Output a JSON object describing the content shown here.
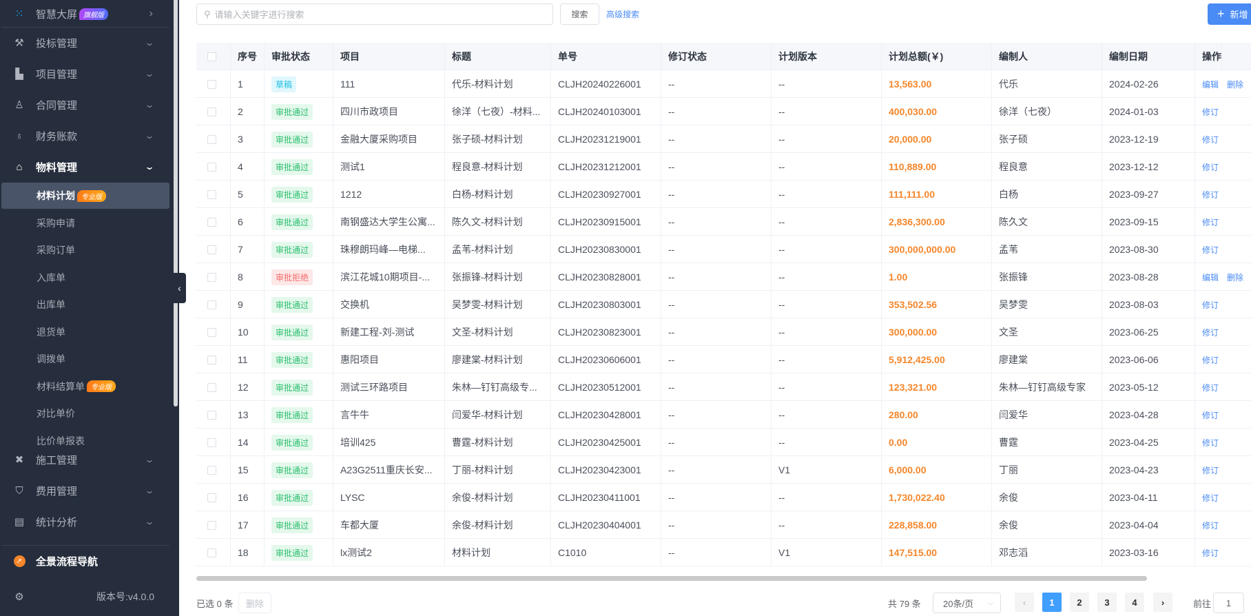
{
  "sidebar": {
    "top": {
      "label": "智慧大屏",
      "badge": "旗舰版",
      "icon": "dots-grid-icon"
    },
    "menus": [
      {
        "label": "投标管理",
        "icon": "gavel-icon"
      },
      {
        "label": "项目管理",
        "icon": "building-icon"
      },
      {
        "label": "合同管理",
        "icon": "seal-icon"
      },
      {
        "label": "财务账款",
        "icon": "money-bag-icon"
      },
      {
        "label": "物料管理",
        "icon": "warehouse-icon"
      }
    ],
    "submenu": [
      {
        "label": "材料计划",
        "badge": "专业版",
        "active": true
      },
      {
        "label": "采购申请"
      },
      {
        "label": "采购订单"
      },
      {
        "label": "入库单"
      },
      {
        "label": "出库单"
      },
      {
        "label": "退货单"
      },
      {
        "label": "调拨单"
      },
      {
        "label": "材料结算单",
        "badge": "专业版"
      },
      {
        "label": "对比单价"
      },
      {
        "label": "比价单报表"
      }
    ],
    "menus2": [
      {
        "label": "施工管理",
        "icon": "tools-icon"
      },
      {
        "label": "费用管理",
        "icon": "shield-yen-icon"
      },
      {
        "label": "统计分析",
        "icon": "chart-box-icon"
      }
    ],
    "nav": {
      "label": "全景流程导航",
      "icon": "compass-icon"
    },
    "version": "版本号:v4.0.0"
  },
  "toolbar": {
    "search_placeholder": "请输入关键字进行搜索",
    "search_label": "搜索",
    "advanced_label": "高级搜索",
    "new_label": "新增"
  },
  "table": {
    "columns": [
      "序号",
      "审批状态",
      "项目",
      "标题",
      "单号",
      "修订状态",
      "计划版本",
      "计划总额(￥)",
      "编制人",
      "编制日期",
      "操作"
    ],
    "rows": [
      {
        "no": "1",
        "status": "草稿",
        "kind": "draft",
        "project": "111",
        "title": "代乐-材料计划",
        "code": "CLJH20240226001",
        "rev": "--",
        "ver": "--",
        "amount": "13,563.00",
        "author": "代乐",
        "date": "2024-02-26",
        "actions": [
          "编辑",
          "删除"
        ]
      },
      {
        "no": "2",
        "status": "审批通过",
        "kind": "pass",
        "project": "四川市政项目",
        "title": "徐洋（七夜）-材料...",
        "code": "CLJH20240103001",
        "rev": "--",
        "ver": "--",
        "amount": "400,030.00",
        "author": "徐洋（七夜）",
        "date": "2024-01-03",
        "actions": [
          "修订"
        ]
      },
      {
        "no": "3",
        "status": "审批通过",
        "kind": "pass",
        "project": "金融大厦采购项目",
        "title": "张子硕-材料计划",
        "code": "CLJH20231219001",
        "rev": "--",
        "ver": "--",
        "amount": "20,000.00",
        "author": "张子硕",
        "date": "2023-12-19",
        "actions": [
          "修订"
        ]
      },
      {
        "no": "4",
        "status": "审批通过",
        "kind": "pass",
        "project": "测试1",
        "title": "程良意-材料计划",
        "code": "CLJH20231212001",
        "rev": "--",
        "ver": "--",
        "amount": "110,889.00",
        "author": "程良意",
        "date": "2023-12-12",
        "actions": [
          "修订"
        ]
      },
      {
        "no": "5",
        "status": "审批通过",
        "kind": "pass",
        "project": "1212",
        "title": "白杨-材料计划",
        "code": "CLJH20230927001",
        "rev": "--",
        "ver": "--",
        "amount": "111,111.00",
        "author": "白杨",
        "date": "2023-09-27",
        "actions": [
          "修订"
        ]
      },
      {
        "no": "6",
        "status": "审批通过",
        "kind": "pass",
        "project": "南钢盛达大学生公寓...",
        "title": "陈久文-材料计划",
        "code": "CLJH20230915001",
        "rev": "--",
        "ver": "--",
        "amount": "2,836,300.00",
        "author": "陈久文",
        "date": "2023-09-15",
        "actions": [
          "修订"
        ]
      },
      {
        "no": "7",
        "status": "审批通过",
        "kind": "pass",
        "project": "珠穆朗玛峰—电梯...",
        "title": "孟苇-材料计划",
        "code": "CLJH20230830001",
        "rev": "--",
        "ver": "--",
        "amount": "300,000,000.00",
        "author": "孟苇",
        "date": "2023-08-30",
        "actions": [
          "修订"
        ]
      },
      {
        "no": "8",
        "status": "审批拒绝",
        "kind": "reject",
        "project": "滨江花城10期项目-...",
        "title": "张振锋-材料计划",
        "code": "CLJH20230828001",
        "rev": "--",
        "ver": "--",
        "amount": "1.00",
        "author": "张振锋",
        "date": "2023-08-28",
        "actions": [
          "编辑",
          "删除"
        ]
      },
      {
        "no": "9",
        "status": "审批通过",
        "kind": "pass",
        "project": "交换机",
        "title": "吴梦雯-材料计划",
        "code": "CLJH20230803001",
        "rev": "--",
        "ver": "--",
        "amount": "353,502.56",
        "author": "吴梦雯",
        "date": "2023-08-03",
        "actions": [
          "修订"
        ]
      },
      {
        "no": "10",
        "status": "审批通过",
        "kind": "pass",
        "project": "新建工程-刘-测试",
        "title": "文圣-材料计划",
        "code": "CLJH20230823001",
        "rev": "--",
        "ver": "--",
        "amount": "300,000.00",
        "author": "文圣",
        "date": "2023-06-25",
        "actions": [
          "修订"
        ]
      },
      {
        "no": "11",
        "status": "审批通过",
        "kind": "pass",
        "project": "惠阳项目",
        "title": "廖建棠-材料计划",
        "code": "CLJH20230606001",
        "rev": "--",
        "ver": "--",
        "amount": "5,912,425.00",
        "author": "廖建棠",
        "date": "2023-06-06",
        "actions": [
          "修订"
        ]
      },
      {
        "no": "12",
        "status": "审批通过",
        "kind": "pass",
        "project": "测试三环路项目",
        "title": "朱林—钉钉高级专...",
        "code": "CLJH20230512001",
        "rev": "--",
        "ver": "--",
        "amount": "123,321.00",
        "author": "朱林—钉钉高级专家",
        "date": "2023-05-12",
        "actions": [
          "修订"
        ]
      },
      {
        "no": "13",
        "status": "审批通过",
        "kind": "pass",
        "project": "言牛牛",
        "title": "闫爱华-材料计划",
        "code": "CLJH20230428001",
        "rev": "--",
        "ver": "--",
        "amount": "280.00",
        "author": "闫爱华",
        "date": "2023-04-28",
        "actions": [
          "修订"
        ]
      },
      {
        "no": "14",
        "status": "审批通过",
        "kind": "pass",
        "project": "培训425",
        "title": "曹霆-材料计划",
        "code": "CLJH20230425001",
        "rev": "--",
        "ver": "--",
        "amount": "0.00",
        "author": "曹霆",
        "date": "2023-04-25",
        "actions": [
          "修订"
        ]
      },
      {
        "no": "15",
        "status": "审批通过",
        "kind": "pass",
        "project": "A23G2511重庆长安...",
        "title": "丁丽-材料计划",
        "code": "CLJH20230423001",
        "rev": "--",
        "ver": "V1",
        "amount": "6,000.00",
        "author": "丁丽",
        "date": "2023-04-23",
        "actions": [
          "修订"
        ]
      },
      {
        "no": "16",
        "status": "审批通过",
        "kind": "pass",
        "project": "LYSC",
        "title": "余俊-材料计划",
        "code": "CLJH20230411001",
        "rev": "--",
        "ver": "--",
        "amount": "1,730,022.40",
        "author": "余俊",
        "date": "2023-04-11",
        "actions": [
          "修订"
        ]
      },
      {
        "no": "17",
        "status": "审批通过",
        "kind": "pass",
        "project": "车都大厦",
        "title": "余俊-材料计划",
        "code": "CLJH20230404001",
        "rev": "--",
        "ver": "--",
        "amount": "228,858.00",
        "author": "余俊",
        "date": "2023-04-04",
        "actions": [
          "修订"
        ]
      },
      {
        "no": "18",
        "status": "审批通过",
        "kind": "pass",
        "project": "lx测试2",
        "title": "材料计划",
        "code": "C1010",
        "rev": "--",
        "ver": "V1",
        "amount": "147,515.00",
        "author": "邓志滔",
        "date": "2023-03-16",
        "actions": [
          "修订"
        ]
      }
    ]
  },
  "footer": {
    "selected": "已选 0 条",
    "delete_label": "删除",
    "total": "共 79 条",
    "page_size": "20条/页",
    "pages": [
      "1",
      "2",
      "3",
      "4"
    ],
    "current_page": "1",
    "goto_label": "前往",
    "goto_value": "1"
  },
  "colors": {
    "accent": "#4a8bf5",
    "amount": "#f5862a",
    "sidebar": "#262e3d",
    "pass": "#2cbf6e",
    "reject": "#f56c6c",
    "draft": "#1fc0e4"
  }
}
